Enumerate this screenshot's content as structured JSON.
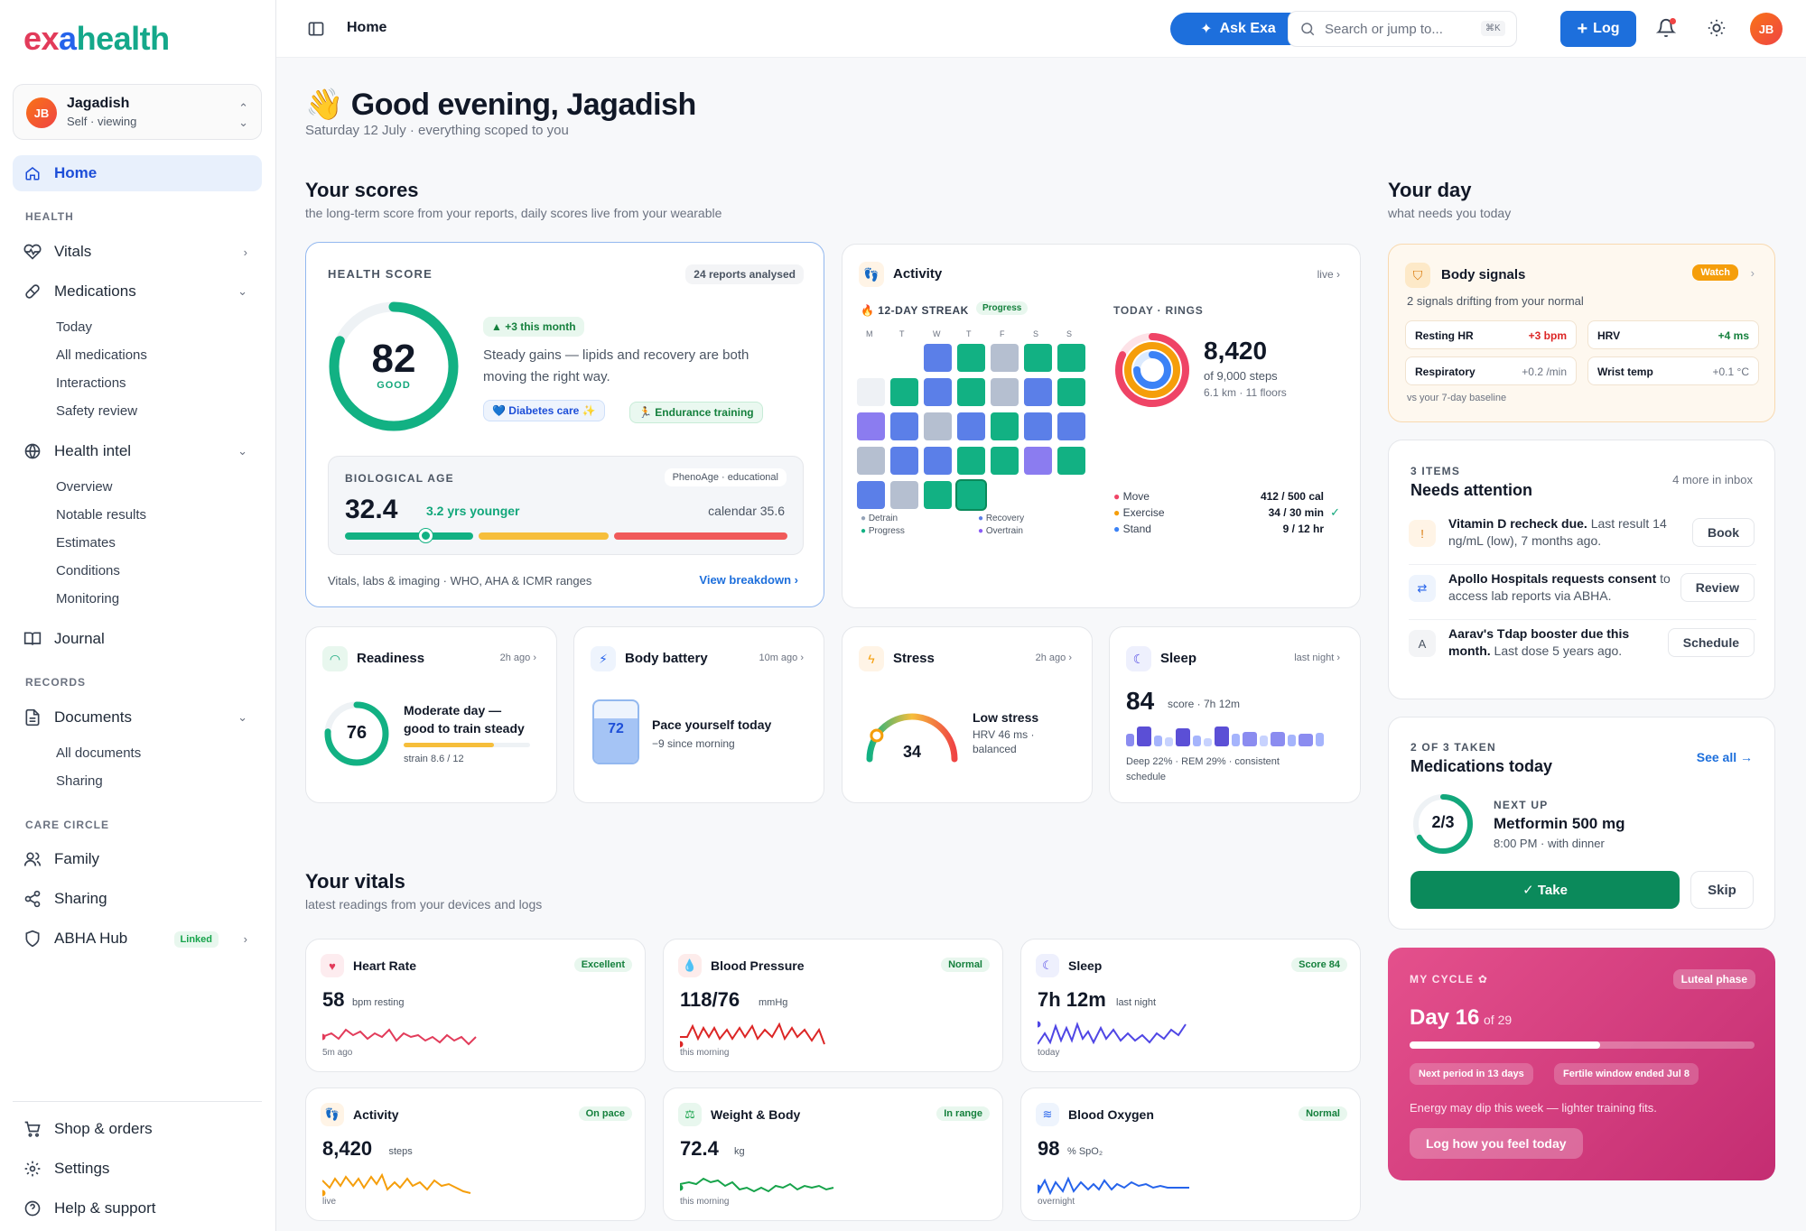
{
  "brand": {
    "part1": "ex",
    "part2": "a",
    "part3": "health"
  },
  "profile": {
    "initials": "JB",
    "name": "Jagadish",
    "sub": "Self · viewing"
  },
  "sidebar": {
    "home": "Home",
    "sec_health": "HEALTH",
    "vitals": "Vitals",
    "medications": "Medications",
    "med_sub": [
      "Today",
      "All medications",
      "Interactions",
      "Safety review"
    ],
    "health_intel": "Health intel",
    "intel_sub": [
      "Overview",
      "Notable results",
      "Estimates",
      "Conditions",
      "Monitoring"
    ],
    "journal": "Journal",
    "sec_records": "RECORDS",
    "documents": "Documents",
    "doc_sub": [
      "All documents",
      "Sharing"
    ],
    "sec_care": "CARE CIRCLE",
    "family": "Family",
    "sharing": "Sharing",
    "abha": "ABHA Hub",
    "linked": "Linked",
    "shop": "Shop & orders",
    "settings": "Settings",
    "help": "Help & support"
  },
  "topbar": {
    "title": "Home",
    "ask": "Ask Exa",
    "search_placeholder": "Search or jump to...",
    "kbd": "⌘K",
    "log": "Log",
    "initials": "JB"
  },
  "greeting": {
    "emoji": "👋",
    "title": "Good evening, Jagadish",
    "sub": "Saturday 12 July · everything scoped to you"
  },
  "scores": {
    "title": "Your scores",
    "sub": "the long-term score from your reports, daily scores live from your wearable"
  },
  "health_score": {
    "label": "HEALTH SCORE",
    "reports": "24 reports analysed",
    "score": "82",
    "score_value": 82,
    "grade": "GOOD",
    "trend": "▲ +3 this month",
    "desc1": "Steady gains — lipids and recovery are both",
    "desc2": "moving the right way.",
    "tag1": "💙 Diabetes care ✨",
    "tag2": "🏃 Endurance training",
    "bio_label": "BIOLOGICAL AGE",
    "bio_note": "PhenoAge · educational",
    "bio_value": "32.4",
    "bio_diff": "3.2 yrs younger",
    "bio_calendar": "calendar 35.6",
    "footer": "Vitals, labs & imaging · WHO, AHA & ICMR ranges",
    "link": "View breakdown"
  },
  "activity": {
    "title": "Activity",
    "live": "live",
    "streak": "🔥 12-DAY STREAK",
    "progress": "Progress",
    "days": [
      "M",
      "T",
      "W",
      "T",
      "F",
      "S",
      "S"
    ],
    "legend": [
      "Detrain",
      "Progress",
      "Recovery",
      "Overtrain"
    ],
    "rings_label": "TODAY · RINGS",
    "steps": "8,420",
    "steps_goal": "of 9,000 steps",
    "distance": "6.1 km · 11 floors",
    "rows": [
      {
        "name": "Move",
        "value": "412 / 500 cal",
        "color": "#ef4466"
      },
      {
        "name": "Exercise",
        "value": "34 / 30 min",
        "color": "#f59e0b"
      },
      {
        "name": "Stand",
        "value": "9 / 12 hr",
        "color": "#3b82f6"
      }
    ],
    "check": "✓"
  },
  "readiness": {
    "title": "Readiness",
    "time": "2h ago",
    "value": "76",
    "value_num": 76,
    "desc1": "Moderate day —",
    "desc2": "good to train steady",
    "strain": "strain 8.6 / 12",
    "strain_num": 8.6
  },
  "battery": {
    "title": "Body battery",
    "time": "10m ago",
    "value": "72",
    "value_num": 72,
    "desc": "Pace yourself today",
    "sub": "−9 since morning"
  },
  "stress": {
    "title": "Stress",
    "time": "2h ago",
    "value": "34",
    "value_num": 34,
    "desc": "Low stress",
    "sub1": "HRV 46 ms ·",
    "sub2": "balanced"
  },
  "sleep": {
    "title": "Sleep",
    "time": "last night",
    "value": "84",
    "sub": "score · 7h 12m",
    "desc1": "Deep 22% · REM 29% · consistent",
    "desc2": "schedule"
  },
  "vitals": {
    "title": "Your vitals",
    "sub": "latest readings from your devices and logs",
    "cards": [
      {
        "title": "Heart Rate",
        "badge": "Excellent",
        "value": "58",
        "unit": "bpm resting",
        "time": "5m ago",
        "color": "#e23b5a"
      },
      {
        "title": "Blood Pressure",
        "badge": "Normal",
        "value": "118/76",
        "unit": "mmHg",
        "time": "this morning",
        "color": "#dc2626"
      },
      {
        "title": "Sleep",
        "badge": "Score 84",
        "value": "7h 12m",
        "unit": "last night",
        "time": "today",
        "color": "#4f46e5"
      },
      {
        "title": "Activity",
        "badge": "On pace",
        "value": "8,420",
        "unit": "steps",
        "time": "live",
        "color": "#f59e0b"
      },
      {
        "title": "Weight & Body",
        "badge": "In range",
        "value": "72.4",
        "unit": "kg",
        "time": "this morning",
        "color": "#16a34a"
      },
      {
        "title": "Blood Oxygen",
        "badge": "Normal",
        "value": "98",
        "unit": "% SpO₂",
        "time": "overnight",
        "color": "#2563eb"
      }
    ]
  },
  "day": {
    "title": "Your day",
    "sub": "what needs you today"
  },
  "signals": {
    "title": "Body signals",
    "badge": "Watch",
    "sub": "2 signals drifting from your normal",
    "items": [
      {
        "name": "Resting HR",
        "value": "+3 bpm"
      },
      {
        "name": "HRV",
        "value": "+4 ms"
      },
      {
        "name": "Respiratory",
        "value": "+0.2 /min"
      },
      {
        "name": "Wrist temp",
        "value": "+0.1 °C"
      }
    ],
    "footer": "vs your 7-day baseline"
  },
  "attention": {
    "count": "3 ITEMS",
    "title": "Needs attention",
    "inbox": "4 more in inbox",
    "items": [
      {
        "bold": "Vitamin D recheck due.",
        "text": " Last result 14",
        "text2": "ng/mL (low), 7 months ago.",
        "button": "Book",
        "icon": "!"
      },
      {
        "bold": "Apollo Hospitals requests consent",
        "text": " to",
        "text2": "access lab reports via ABHA.",
        "button": "Review",
        "icon": "⇄"
      },
      {
        "bold": "Aarav's Tdap booster due this",
        "text": "",
        "text2b": "month.",
        "text2": " Last dose 5 years ago.",
        "button": "Schedule",
        "icon": "A"
      }
    ]
  },
  "meds": {
    "count": "2 OF 3 TAKEN",
    "title": "Medications today",
    "see_all": "See all →",
    "ring": "2/3",
    "taken": 2,
    "total": 3,
    "next_label": "NEXT UP",
    "next_name": "Metformin 500 mg",
    "next_time": "8:00 PM · with dinner",
    "take": "✓ Take",
    "skip": "Skip"
  },
  "cycle": {
    "label": "MY CYCLE ✿",
    "phase": "Luteal phase",
    "day": "Day 16",
    "of": "of 29",
    "day_num": 16,
    "total": 29,
    "chip1": "Next period in 13 days",
    "chip2": "Fertile window ended Jul 8",
    "desc": "Energy may dip this week — lighter training fits.",
    "cta": "Log how you feel today"
  }
}
